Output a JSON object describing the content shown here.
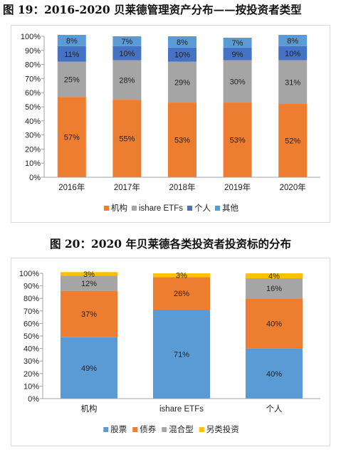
{
  "charts": [
    {
      "figure_title": "图 19：2016-2020 贝莱德管理资产分布——按投资者类型",
      "chart_data": {
        "type": "bar",
        "stacked": true,
        "categories": [
          "2016年",
          "2017年",
          "2018年",
          "2019年",
          "2020年"
        ],
        "series": [
          {
            "name": "机构",
            "color": "#ED7D31",
            "values": [
              57,
              55,
              53,
              53,
              52
            ]
          },
          {
            "name": "ishare ETFs",
            "color": "#A5A5A5",
            "values": [
              25,
              28,
              29,
              30,
              31
            ]
          },
          {
            "name": "个人",
            "color": "#4472C4",
            "values": [
              11,
              10,
              10,
              9,
              10
            ]
          },
          {
            "name": "其他",
            "color": "#5B9BD5",
            "values": [
              8,
              7,
              8,
              7,
              8
            ]
          }
        ],
        "ylim": [
          0,
          100
        ],
        "yticks": [
          "0%",
          "10%",
          "20%",
          "30%",
          "40%",
          "50%",
          "60%",
          "70%",
          "80%",
          "90%",
          "100%"
        ],
        "legend_position": "bottom",
        "grid": false
      }
    },
    {
      "figure_title": "图 20：2020 年贝莱德各类投资者投资标的分布",
      "chart_data": {
        "type": "bar",
        "stacked": true,
        "categories": [
          "机构",
          "ishare ETFs",
          "个人"
        ],
        "series": [
          {
            "name": "股票",
            "color": "#5B9BD5",
            "values": [
              49,
              71,
              40
            ]
          },
          {
            "name": "债券",
            "color": "#ED7D31",
            "values": [
              37,
              26,
              40
            ]
          },
          {
            "name": "混合型",
            "color": "#A5A5A5",
            "values": [
              12,
              null,
              16
            ]
          },
          {
            "name": "另类投资",
            "color": "#FFC000",
            "values": [
              3,
              3,
              4
            ]
          }
        ],
        "ylim": [
          0,
          100
        ],
        "yticks": [
          "0%",
          "10%",
          "20%",
          "30%",
          "40%",
          "50%",
          "60%",
          "70%",
          "80%",
          "90%",
          "100%"
        ],
        "legend_position": "bottom",
        "grid": false
      }
    }
  ]
}
